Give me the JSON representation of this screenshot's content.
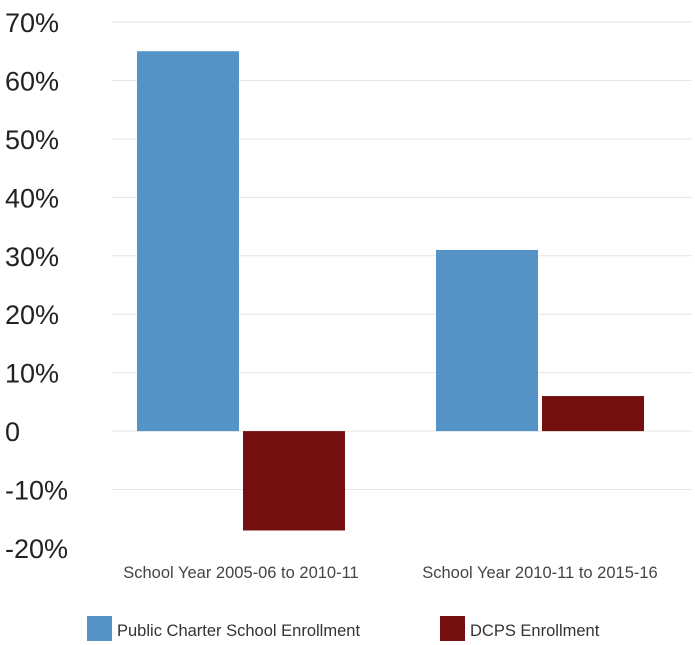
{
  "chart_data": {
    "type": "bar",
    "title": "",
    "xlabel": "",
    "ylabel": "",
    "categories": [
      "School Year 2005-06 to 2010-11",
      "School Year 2010-11 to 2015-16"
    ],
    "series": [
      {
        "name": "Public Charter School Enrollment",
        "values": [
          65,
          31
        ],
        "color": "#5593c6"
      },
      {
        "name": "DCPS Enrollment",
        "values": [
          -17,
          6
        ],
        "color": "#730f0f"
      }
    ],
    "ylim": [
      -20,
      70
    ],
    "yticks": [
      -20,
      -10,
      0,
      10,
      20,
      30,
      40,
      50,
      60,
      70
    ],
    "ytick_labels": [
      "-20%",
      "-10%",
      "0",
      "10%",
      "20%",
      "30%",
      "40%",
      "50%",
      "60%",
      "70%"
    ],
    "grid": true,
    "legend_position": "bottom"
  }
}
